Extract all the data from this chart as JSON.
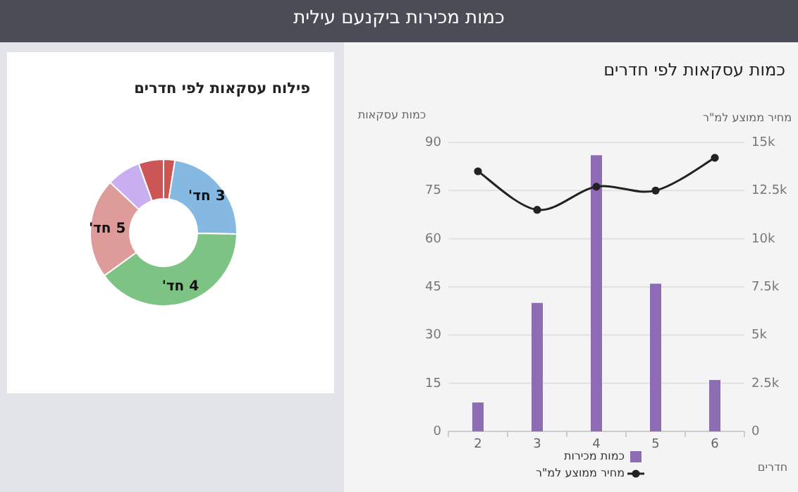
{
  "chart_data": [
    {
      "type": "other",
      "title": "כמות מכירות ביקנעם עילית"
    },
    {
      "type": "bar",
      "title": "כמות עסקאות לפי חדרים",
      "xlabel": "חדרים",
      "ylabel": "כמות עסקאות",
      "y2label": "מחיר ממוצע למ\"ר",
      "categories": [
        "2",
        "3",
        "4",
        "5",
        "6"
      ],
      "ylim": [
        0,
        90
      ],
      "yticks": [
        0,
        15,
        30,
        45,
        60,
        75,
        90
      ],
      "y2lim": [
        0,
        15000
      ],
      "y2ticks": [
        0,
        {
          "value": 2500,
          "label": "2.5k"
        },
        {
          "value": 5000,
          "label": "5k"
        },
        {
          "value": 7500,
          "label": "7.5k"
        },
        {
          "value": 10000,
          "label": "10k"
        },
        {
          "value": 12500,
          "label": "12.5k"
        },
        {
          "value": 15000,
          "label": "15k"
        }
      ],
      "grid": "y",
      "legend": "bottom",
      "marker": "circle",
      "series": [
        {
          "name": "כמות מכירות",
          "type": "bar",
          "color": "#8e6bb5",
          "values": [
            9,
            40,
            86,
            46,
            16
          ]
        },
        {
          "name": "מחיר ממוצע למ\"ר",
          "type": "line",
          "axis": "y2",
          "color": "#222222",
          "values": [
            13500,
            11500,
            12700,
            12500,
            14200
          ]
        }
      ]
    },
    {
      "type": "donut",
      "title": "פילוח עסקאות לפי חדרים",
      "categories": [
        null,
        "3 חד'",
        "4 חד'",
        "5 חד'",
        null,
        null
      ],
      "values": [
        2.5,
        22.8,
        39.7,
        22,
        7.5,
        5.5
      ],
      "colors": [
        "#d05353",
        "#86b9e2",
        "#7dc383",
        "#dd9b99",
        "#c9aff0",
        "#cc5656"
      ]
    }
  ]
}
